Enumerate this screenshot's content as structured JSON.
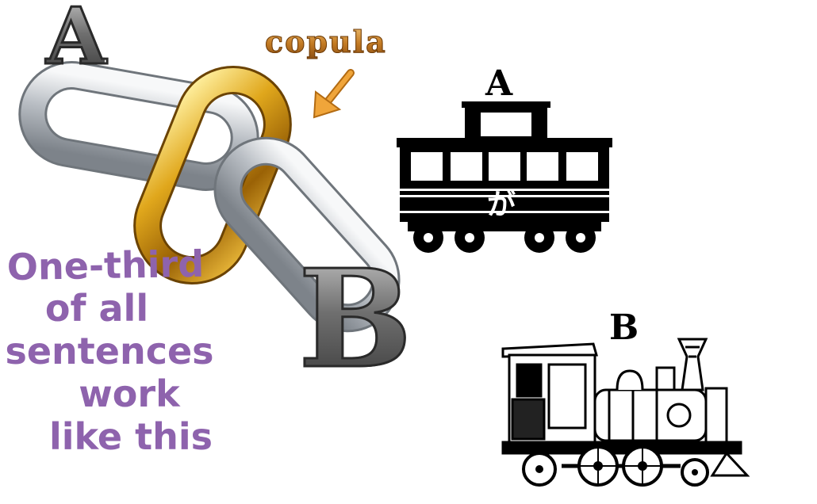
{
  "letters": {
    "a": "A",
    "b": "B"
  },
  "copula_label": "copula",
  "caption_lines": [
    "One-third",
    "of all",
    "sentences",
    "work",
    "like this"
  ],
  "train_car": {
    "top_label": "A",
    "particle": "が"
  },
  "locomotive": {
    "top_label": "B"
  },
  "colors": {
    "caption": "#8e63ad",
    "gold_link": "#c8920e",
    "silver_link": "#c9ced3",
    "copula_text": "#c7882e",
    "arrow": "#f0a53a"
  }
}
